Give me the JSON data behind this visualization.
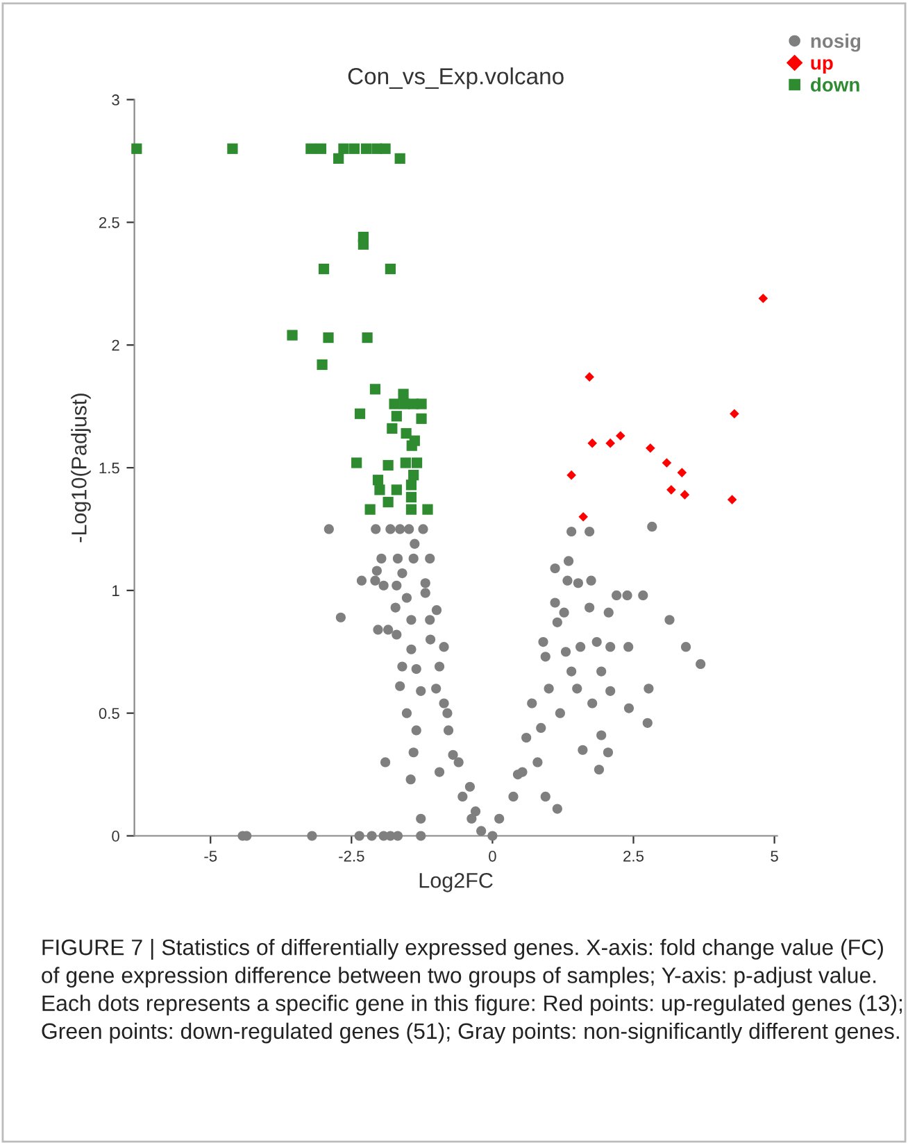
{
  "chart_data": {
    "type": "scatter",
    "title": "Con_vs_Exp.volcano",
    "xlabel": "Log2FC",
    "ylabel": "-Log10(Padjust)",
    "xlim": [
      -6.35,
      5.05
    ],
    "xticks": [
      -5,
      -2.5,
      0,
      2.5,
      5
    ],
    "ylim": [
      0,
      3
    ],
    "yticks": [
      0,
      0.5,
      1,
      1.5,
      2,
      2.5,
      3
    ],
    "grid": false,
    "legend": "top right",
    "series": [
      {
        "name": "nosig",
        "color": "#7f7f7f",
        "marker": "circle",
        "x": [
          -2.9,
          -2.07,
          -1.81,
          -1.64,
          -1.48,
          -1.23,
          -1.38,
          -1.97,
          -1.68,
          -1.4,
          -1.11,
          -2.05,
          -1.6,
          -2.32,
          -2.08,
          -1.93,
          -1.7,
          -1.19,
          -1.52,
          -1.19,
          -2.69,
          -1.72,
          -1.44,
          -0.99,
          -2.03,
          -1.85,
          -1.7,
          -1.11,
          -1.44,
          -0.86,
          -1.6,
          -1.35,
          -0.94,
          -1.64,
          -1.27,
          -1.52,
          -0.86,
          -1.35,
          -0.78,
          -1.4,
          -0.7,
          -1.9,
          -1.45,
          -0.94,
          -0.53,
          -1.27,
          -0.37,
          -0.2,
          -0.6,
          -0.8,
          -1.0,
          -0.4,
          -0.3,
          -1.1,
          -3.2,
          -2.36,
          -2.14,
          -1.93,
          -1.81,
          -1.68,
          -1.27,
          -4.43,
          -4.36,
          1.4,
          1.72,
          2.83,
          1.35,
          1.11,
          1.33,
          1.52,
          1.75,
          2.2,
          2.39,
          2.67,
          1.11,
          1.27,
          1.15,
          1.72,
          2.06,
          3.14,
          0.9,
          1.56,
          1.85,
          2.09,
          2.41,
          3.43,
          3.69,
          0.94,
          1.4,
          1.93,
          2.09,
          2.77,
          1.77,
          2.42,
          2.75,
          1.93,
          2.05,
          1.6,
          1.89,
          1.15,
          0.94,
          0.7,
          0.86,
          0.53,
          0.37,
          0.12,
          0.6,
          1.0,
          1.2,
          0.8,
          1.3,
          0.45,
          1.5,
          0
        ],
        "values": [
          1.25,
          1.25,
          1.25,
          1.25,
          1.25,
          1.25,
          1.19,
          1.13,
          1.13,
          1.13,
          1.13,
          1.08,
          1.07,
          1.04,
          1.04,
          1.02,
          1.02,
          1.03,
          0.97,
          0.99,
          0.89,
          0.93,
          0.88,
          0.92,
          0.84,
          0.84,
          0.82,
          0.88,
          0.76,
          0.77,
          0.69,
          0.68,
          0.69,
          0.61,
          0.59,
          0.5,
          0.54,
          0.43,
          0.43,
          0.34,
          0.33,
          0.3,
          0.23,
          0.26,
          0.16,
          0.07,
          0.07,
          0.02,
          0.3,
          0.5,
          0.6,
          0.2,
          0.1,
          0.8,
          0,
          0,
          0,
          0,
          0,
          0,
          0,
          0,
          0,
          1.24,
          1.24,
          1.26,
          1.12,
          1.09,
          1.04,
          1.03,
          1.04,
          0.98,
          0.98,
          0.98,
          0.95,
          0.91,
          0.87,
          0.93,
          0.91,
          0.88,
          0.79,
          0.77,
          0.79,
          0.77,
          0.77,
          0.77,
          0.7,
          0.73,
          0.67,
          0.67,
          0.59,
          0.6,
          0.54,
          0.52,
          0.46,
          0.41,
          0.34,
          0.35,
          0.27,
          0.11,
          0.16,
          0.54,
          0.44,
          0.26,
          0.16,
          0.07,
          0.4,
          0.6,
          0.5,
          0.3,
          0.75,
          0.25,
          0.6,
          0
        ]
      },
      {
        "name": "up",
        "color": "#ff0000",
        "marker": "diamond",
        "x": [
          4.8,
          1.72,
          4.29,
          1.77,
          2.09,
          2.27,
          2.8,
          3.09,
          3.36,
          1.4,
          3.17,
          3.41,
          4.25,
          1.61
        ],
        "values": [
          2.19,
          1.87,
          1.72,
          1.6,
          1.6,
          1.63,
          1.58,
          1.52,
          1.48,
          1.47,
          1.41,
          1.39,
          1.37,
          1.3
        ]
      },
      {
        "name": "down",
        "color": "#2e8b30",
        "marker": "square",
        "x": [
          -6.31,
          -4.61,
          -3.22,
          -3.04,
          -2.64,
          -2.45,
          -2.24,
          -2.05,
          -1.9,
          -2.73,
          -1.64,
          -2.29,
          -2.29,
          -2.99,
          -1.81,
          -3.55,
          -2.91,
          -2.22,
          -3.02,
          -2.08,
          -1.58,
          -1.74,
          -1.56,
          -1.4,
          -1.26,
          -2.35,
          -1.7,
          -1.26,
          -1.78,
          -1.53,
          -1.38,
          -1.43,
          -2.41,
          -1.85,
          -1.54,
          -1.34,
          -2.03,
          -2.0,
          -1.7,
          -1.4,
          -1.44,
          -1.85,
          -1.44,
          -1.44,
          -2.17,
          -1.15
        ],
        "values": [
          2.8,
          2.8,
          2.8,
          2.8,
          2.8,
          2.8,
          2.8,
          2.8,
          2.8,
          2.76,
          2.76,
          2.44,
          2.41,
          2.31,
          2.31,
          2.04,
          2.03,
          2.03,
          1.92,
          1.82,
          1.8,
          1.76,
          1.76,
          1.76,
          1.76,
          1.72,
          1.71,
          1.7,
          1.66,
          1.64,
          1.61,
          1.59,
          1.52,
          1.51,
          1.52,
          1.52,
          1.45,
          1.41,
          1.41,
          1.47,
          1.43,
          1.36,
          1.38,
          1.33,
          1.33,
          1.33
        ]
      }
    ],
    "annotations": [
      "FIGURE 7 | Statistics of differentially expressed genes. X-axis: fold change value (FC) of gene expression difference between two groups of samples; Y-axis: p-adjust value. Each dots represents a specific gene in this figure: Red points: up-regulated genes (13); Green points: down-regulated genes (51); Gray points: non-significantly different genes."
    ]
  }
}
